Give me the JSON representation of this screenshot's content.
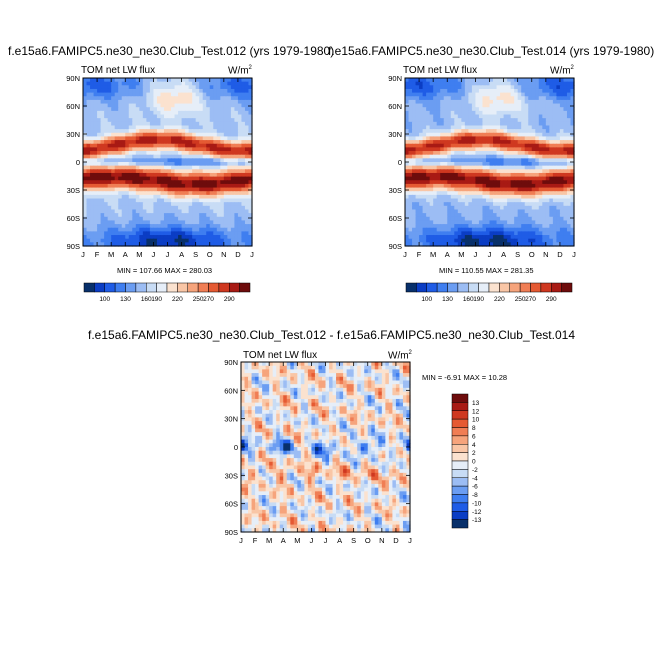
{
  "panels": [
    {
      "title": "f.e15a6.FAMIPC5.ne30_ne30.Club_Test.012 (yrs 1979-1980)",
      "variable": "TOM net LW flux",
      "units": "W/m",
      "units_exp": "2",
      "stats": "MIN = 107.66 MAX = 280.03"
    },
    {
      "title": "f.e15a6.FAMIPC5.ne30_ne30.Club_Test.014 (yrs 1979-1980)",
      "variable": "TOM net LW flux",
      "units": "W/m",
      "units_exp": "2",
      "stats": "MIN = 110.55 MAX = 281.35"
    },
    {
      "title": "f.e15a6.FAMIPC5.ne30_ne30.Club_Test.012 - f.e15a6.FAMIPC5.ne30_ne30.Club_Test.014",
      "variable": "TOM net LW flux",
      "units": "W/m",
      "units_exp": "2",
      "stats": "MIN =  -6.91 MAX =  10.28"
    }
  ],
  "chart_data": [
    {
      "type": "heatmap",
      "title": "f.e15a6.FAMIPC5.ne30_ne30.Club_Test.012 (yrs 1979-1980)",
      "x": [
        "J",
        "F",
        "M",
        "A",
        "M",
        "J",
        "J",
        "A",
        "S",
        "O",
        "N",
        "D",
        "J"
      ],
      "y": [
        "90N",
        "60N",
        "30N",
        "0",
        "30S",
        "60S",
        "90S"
      ],
      "ylim": [
        -90,
        90
      ],
      "min": 107.66,
      "max": 280.03,
      "contour_levels": [
        "100",
        "130",
        "160",
        "190",
        "220",
        "250",
        "270",
        "290"
      ]
    },
    {
      "type": "heatmap",
      "title": "f.e15a6.FAMIPC5.ne30_ne30.Club_Test.014 (yrs 1979-1980)",
      "x": [
        "J",
        "F",
        "M",
        "A",
        "M",
        "J",
        "J",
        "A",
        "S",
        "O",
        "N",
        "D",
        "J"
      ],
      "y": [
        "90N",
        "60N",
        "30N",
        "0",
        "30S",
        "60S",
        "90S"
      ],
      "ylim": [
        -90,
        90
      ],
      "min": 110.55,
      "max": 281.35,
      "contour_levels": [
        "100",
        "130",
        "160",
        "190",
        "220",
        "250",
        "270",
        "290"
      ]
    },
    {
      "type": "heatmap",
      "title": "f.e15a6.FAMIPC5.ne30_ne30.Club_Test.012 - f.e15a6.FAMIPC5.ne30_ne30.Club_Test.014",
      "x": [
        "J",
        "F",
        "M",
        "A",
        "M",
        "J",
        "J",
        "A",
        "S",
        "O",
        "N",
        "D",
        "J"
      ],
      "y": [
        "90N",
        "60N",
        "30N",
        "0",
        "30S",
        "60S",
        "90S"
      ],
      "ylim": [
        -90,
        90
      ],
      "min": -6.91,
      "max": 10.28,
      "contour_levels": [
        "13",
        "12",
        "10",
        "8",
        "6",
        "4",
        "2",
        "0",
        "-2",
        "-4",
        "-6",
        "-8",
        "-10",
        "-12",
        "-13"
      ]
    }
  ],
  "colors": {
    "abs_scale": [
      "#08306b",
      "#0b3dc4",
      "#1f5ce6",
      "#3f7ef0",
      "#6b9df2",
      "#9cbdf4",
      "#c8dcf5",
      "#e6eef8",
      "#fbe2cf",
      "#f9c6a6",
      "#f6a47c",
      "#f07e55",
      "#e55a33",
      "#cf3820",
      "#a81a14",
      "#6e0c0c"
    ],
    "diff_scale": [
      "#6e0c0c",
      "#a81a14",
      "#cf3820",
      "#e55a33",
      "#f07e55",
      "#f6a47c",
      "#f9c6a6",
      "#fbe2cf",
      "#e6eef8",
      "#c8dcf5",
      "#9cbdf4",
      "#6b9df2",
      "#3f7ef0",
      "#1f5ce6",
      "#0b3dc4",
      "#08306b"
    ]
  }
}
